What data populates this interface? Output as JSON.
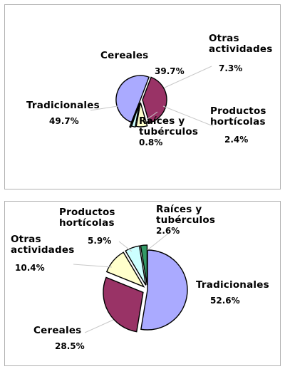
{
  "chart_data": [
    {
      "type": "pie",
      "title": "",
      "slices": [
        {
          "label": "Tradicionales",
          "value": 49.7,
          "color": "#aaaaff"
        },
        {
          "label": "Cereales",
          "value": 39.7,
          "color": "#993366"
        },
        {
          "label": "Otras actividades",
          "value": 7.3,
          "color": "#ffffcc"
        },
        {
          "label": "Productos hortícolas",
          "value": 2.4,
          "color": "#ccffff"
        },
        {
          "label": "Raíces y tubérculos",
          "value": 0.8,
          "color": "#339966"
        }
      ],
      "labels": [
        {
          "name_lines": [
            "Cereales"
          ],
          "pct": "39.7%"
        },
        {
          "name_lines": [
            "Otras",
            "actividades"
          ],
          "pct": "7.3%"
        },
        {
          "name_lines": [
            "Tradicionales"
          ],
          "pct": "49.7%"
        },
        {
          "name_lines": [
            "Productos",
            "hortícolas"
          ],
          "pct": "2.4%"
        },
        {
          "name_lines": [
            "Raíces y",
            "tubérculos"
          ],
          "pct": "0.8%"
        }
      ]
    },
    {
      "type": "pie",
      "title": "",
      "slices": [
        {
          "label": "Tradicionales",
          "value": 52.6,
          "color": "#aaaaff"
        },
        {
          "label": "Cereales",
          "value": 28.5,
          "color": "#993366"
        },
        {
          "label": "Otras actividades",
          "value": 10.4,
          "color": "#ffffcc"
        },
        {
          "label": "Productos hortícolas",
          "value": 5.9,
          "color": "#ccffff"
        },
        {
          "label": "Raíces y tubérculos",
          "value": 2.6,
          "color": "#339966"
        }
      ],
      "labels": [
        {
          "name_lines": [
            "Productos",
            "hortícolas"
          ],
          "pct": "5.9%"
        },
        {
          "name_lines": [
            "Raíces y",
            "tubérculos"
          ],
          "pct": "2.6%"
        },
        {
          "name_lines": [
            "Otras",
            "actividades"
          ],
          "pct": "10.4%"
        },
        {
          "name_lines": [
            "Tradicionales"
          ],
          "pct": "52.6%"
        },
        {
          "name_lines": [
            "Cereales"
          ],
          "pct": "28.5%"
        }
      ]
    }
  ]
}
